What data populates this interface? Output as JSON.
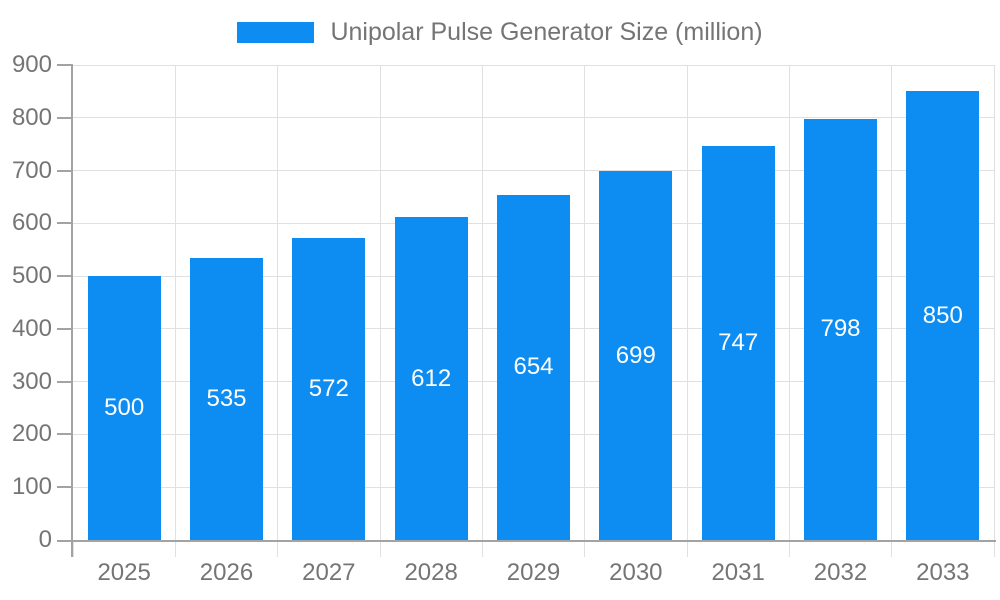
{
  "chart": {
    "legend": {
      "label": "Unipolar Pulse Generator Size (million)"
    },
    "colors": {
      "bar": "#0d8cf2",
      "axis_line": "#a3a3a3",
      "gridline": "#e0e0e0",
      "axis_text": "#757575",
      "value_label_text": "#ffffff",
      "background": "#ffffff"
    }
  },
  "chart_data": {
    "type": "bar",
    "title": "Unipolar Pulse Generator Size (million)",
    "categories": [
      "2025",
      "2026",
      "2027",
      "2028",
      "2029",
      "2030",
      "2031",
      "2032",
      "2033"
    ],
    "values": [
      500,
      535,
      572,
      612,
      654,
      699,
      747,
      798,
      850
    ],
    "value_labels_shown": true,
    "value_label_position": "inside-center",
    "xlabel": "",
    "ylabel": "",
    "ylim": [
      0,
      900
    ],
    "ytick_step": 100,
    "ytick_labels": [
      "0",
      "100",
      "200",
      "300",
      "400",
      "500",
      "600",
      "700",
      "800",
      "900"
    ],
    "grid": "horizontal and vertical light gray",
    "legend_position": "top-center"
  }
}
